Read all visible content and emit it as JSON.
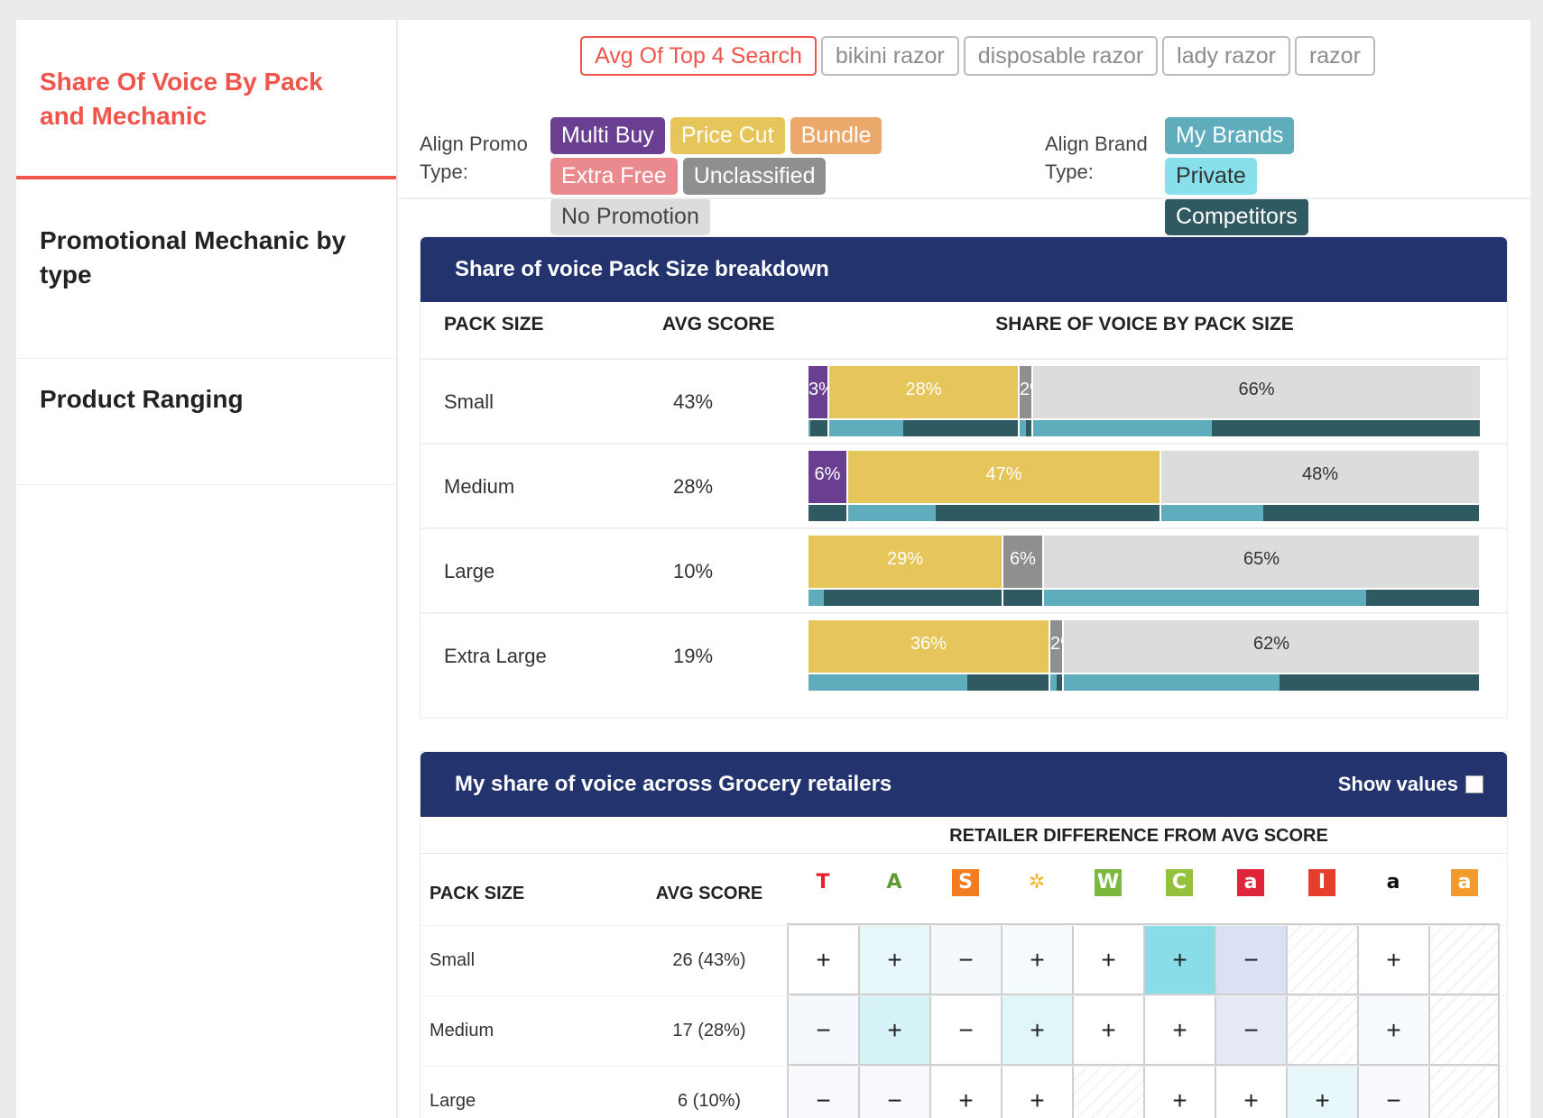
{
  "sidebar": {
    "items": [
      {
        "label": "Share Of Voice By Pack and Mechanic"
      },
      {
        "label": "Promotional Mechanic by type"
      },
      {
        "label": "Product Ranging"
      }
    ]
  },
  "search_tabs": [
    "Avg Of Top 4 Search",
    "bikini razor",
    "disposable razor",
    "lady razor",
    "razor"
  ],
  "promo_filter": {
    "label": "Align Promo Type:",
    "chips": [
      {
        "label": "Multi Buy",
        "color": "#6a3f91",
        "text": "#ffffff"
      },
      {
        "label": "Price Cut",
        "color": "#e6c65a",
        "text": "#ffffff"
      },
      {
        "label": "Bundle",
        "color": "#eaa86a",
        "text": "#ffffff"
      },
      {
        "label": "Extra Free",
        "color": "#ea8a8e",
        "text": "#ffffff"
      },
      {
        "label": "Unclassified",
        "color": "#8f8f8f",
        "text": "#ffffff"
      },
      {
        "label": "No Promotion",
        "color": "#dcdcdc",
        "text": "#444444"
      }
    ]
  },
  "brand_filter": {
    "label": "Align Brand Type:",
    "chips": [
      {
        "label": "My Brands",
        "color": "#5fadbc",
        "text": "#ffffff"
      },
      {
        "label": "Private",
        "color": "#88e0ec",
        "text": "#333333"
      },
      {
        "label": "Competitors",
        "color": "#305a62",
        "text": "#ffffff"
      }
    ]
  },
  "pack_card": {
    "title": "Share of voice Pack Size breakdown",
    "columns": [
      "PACK SIZE",
      "AVG SCORE",
      "SHARE OF VOICE BY PACK SIZE"
    ],
    "promo_colors": {
      "multi": "#6a3f91",
      "price": "#e6c65a",
      "unclassified": "#8f8f8f",
      "none": "#dcdcdc"
    },
    "brand_colors": {
      "mine": "#5fadbc",
      "competitors": "#305a62"
    },
    "rows": [
      {
        "name": "Small",
        "score": "43%",
        "segments": [
          {
            "type": "multi",
            "value": 3,
            "label": "3%"
          },
          {
            "type": "price",
            "value": 28,
            "label": "28%"
          },
          {
            "type": "unclassified",
            "value": 2,
            "label": "2%"
          },
          {
            "type": "none",
            "value": 66,
            "label": "66%"
          }
        ],
        "brand": [
          [
            0.1,
            0.9
          ],
          [
            0.39,
            0.61
          ],
          [
            0.5,
            0.5
          ],
          [
            0.4,
            0.6
          ]
        ]
      },
      {
        "name": "Medium",
        "score": "28%",
        "segments": [
          {
            "type": "multi",
            "value": 6,
            "label": "6%"
          },
          {
            "type": "price",
            "value": 47,
            "label": "47%"
          },
          {
            "type": "none",
            "value": 48,
            "label": "48%"
          }
        ],
        "brand": [
          [
            0,
            1
          ],
          [
            0.28,
            0.72
          ],
          [
            0.32,
            0.68
          ]
        ]
      },
      {
        "name": "Large",
        "score": "10%",
        "segments": [
          {
            "type": "price",
            "value": 29,
            "label": "29%"
          },
          {
            "type": "unclassified",
            "value": 6,
            "label": "6%"
          },
          {
            "type": "none",
            "value": 65,
            "label": "65%"
          }
        ],
        "brand": [
          [
            0.08,
            0.92
          ],
          [
            0,
            1
          ],
          [
            0.74,
            0.26
          ]
        ]
      },
      {
        "name": "Extra Large",
        "score": "19%",
        "segments": [
          {
            "type": "price",
            "value": 36,
            "label": "36%"
          },
          {
            "type": "unclassified",
            "value": 2,
            "label": "2%"
          },
          {
            "type": "none",
            "value": 62,
            "label": "62%"
          }
        ],
        "brand": [
          [
            0.66,
            0.34
          ],
          [
            0.5,
            0.5
          ],
          [
            0.52,
            0.48
          ]
        ]
      }
    ]
  },
  "retailer_card": {
    "title": "My share of voice across Grocery retailers",
    "show_values_label": "Show values",
    "subheader": "RETAILER DIFFERENCE FROM AVG SCORE",
    "columns": [
      "PACK SIZE",
      "AVG SCORE"
    ],
    "retailers": [
      {
        "icon": "tesco-logo-icon",
        "glyph": "T",
        "fg": "#e3202b",
        "bg": "#ffffff"
      },
      {
        "icon": "asda-star-logo-icon",
        "glyph": "A",
        "fg": "#5c9b2f",
        "bg": "#ffffff"
      },
      {
        "icon": "sainsburys-logo-icon",
        "glyph": "S",
        "fg": "#ffffff",
        "bg": "#f47c20"
      },
      {
        "icon": "morrisons-logo-icon",
        "glyph": "✲",
        "fg": "#f2b62f",
        "bg": "#ffffff"
      },
      {
        "icon": "waitrose-logo-icon",
        "glyph": "W",
        "fg": "#ffffff",
        "bg": "#7ab93e"
      },
      {
        "icon": "ocado-logo-icon",
        "glyph": "C",
        "fg": "#ffffff",
        "bg": "#95c23d"
      },
      {
        "icon": "amazon-fresh-logo-icon",
        "glyph": "a",
        "fg": "#ffffff",
        "bg": "#e0243a"
      },
      {
        "icon": "iceland-logo-icon",
        "glyph": "I",
        "fg": "#ffffff",
        "bg": "#e53e2b"
      },
      {
        "icon": "amazon-logo-icon",
        "glyph": "a",
        "fg": "#111111",
        "bg": "#ffffff"
      },
      {
        "icon": "amazon-pantry-logo-icon",
        "glyph": "a",
        "fg": "#ffffff",
        "bg": "#f39a2c"
      }
    ],
    "rows": [
      {
        "name": "Small",
        "score": "26 (43%)",
        "cells": [
          {
            "s": "+",
            "bg": "#ffffff"
          },
          {
            "s": "+",
            "bg": "#e8f8fa"
          },
          {
            "s": "−",
            "bg": "#f5f8fc"
          },
          {
            "s": "+",
            "bg": "#f5fbfd"
          },
          {
            "s": "+",
            "bg": "#ffffff"
          },
          {
            "s": "+",
            "bg": "#88dde9"
          },
          {
            "s": "−",
            "bg": "#dbe1f5"
          },
          {
            "s": "",
            "bg": "hatch"
          },
          {
            "s": "+",
            "bg": "#ffffff"
          },
          {
            "s": "",
            "bg": "hatch"
          }
        ]
      },
      {
        "name": "Medium",
        "score": "17 (28%)",
        "cells": [
          {
            "s": "−",
            "bg": "#f5f8fc"
          },
          {
            "s": "+",
            "bg": "#d6f3f8"
          },
          {
            "s": "−",
            "bg": "#ffffff"
          },
          {
            "s": "+",
            "bg": "#e1f6f9"
          },
          {
            "s": "+",
            "bg": "#ffffff"
          },
          {
            "s": "+",
            "bg": "#ffffff"
          },
          {
            "s": "−",
            "bg": "#e6eaf7"
          },
          {
            "s": "",
            "bg": "hatch"
          },
          {
            "s": "+",
            "bg": "#f5fbfd"
          },
          {
            "s": "",
            "bg": "hatch"
          }
        ]
      },
      {
        "name": "Large",
        "score": "6 (10%)",
        "cells": [
          {
            "s": "−",
            "bg": "#f7f9fc"
          },
          {
            "s": "−",
            "bg": "#f7f9fc"
          },
          {
            "s": "+",
            "bg": "#ffffff"
          },
          {
            "s": "+",
            "bg": "#ffffff"
          },
          {
            "s": "",
            "bg": "hatch"
          },
          {
            "s": "+",
            "bg": "#ffffff"
          },
          {
            "s": "+",
            "bg": "#ffffff"
          },
          {
            "s": "+",
            "bg": "#e8f8fa"
          },
          {
            "s": "−",
            "bg": "#f7f9fc"
          },
          {
            "s": "",
            "bg": "hatch"
          }
        ]
      }
    ]
  }
}
